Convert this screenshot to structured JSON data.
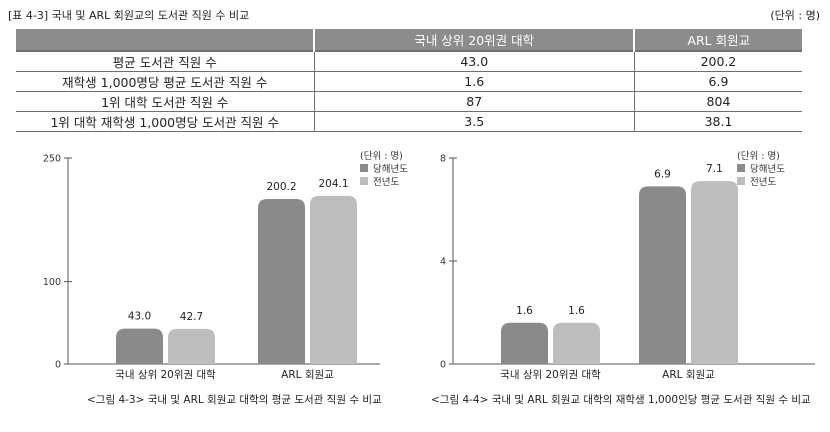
{
  "table": {
    "caption": "[표 4-3] 국내 및 ARL 회원교의 도서관 직원 수 비교",
    "unit": "(단위 : 명)",
    "headers": [
      "",
      "국내 상위 20위권 대학",
      "ARL 회원교"
    ],
    "rows": [
      [
        "평균 도서관 직원 수",
        "43.0",
        "200.2"
      ],
      [
        "재학생 1,000명당 평균 도서관 직원 수",
        "1.6",
        "6.9"
      ],
      [
        "1위 대학 도서관 직원 수",
        "87",
        "804"
      ],
      [
        "1위 대학 재학생 1,000명당 도서관 직원 수",
        "3.5",
        "38.1"
      ]
    ]
  },
  "chart_data": [
    {
      "type": "bar",
      "caption": "<그림 4-3> 국내 및 ARL 회원교 대학의 평균 도서관 직원 수 비교",
      "unit": "(단위 : 명)",
      "categories": [
        "국내 상위 20위권 대학",
        "ARL 회원교"
      ],
      "series": [
        {
          "name": "당해년도",
          "values": [
            43.0,
            200.2
          ],
          "labels": [
            "43.0",
            "200.2"
          ],
          "color": "#8a8a8a"
        },
        {
          "name": "전년도",
          "values": [
            42.7,
            204.1
          ],
          "labels": [
            "42.7",
            "204.1"
          ],
          "color": "#bdbdbd"
        }
      ],
      "ylim": [
        0,
        250
      ],
      "yticks": [
        "0",
        "100",
        "250"
      ],
      "legend_position": "top-right",
      "grid": false
    },
    {
      "type": "bar",
      "caption": "<그림 4-4> 국내 및 ARL 회원교 대학의 재학생 1,000인당 평균 도서관 직원 수 비교",
      "unit": "(단위 : 명)",
      "categories": [
        "국내 상위 20위권 대학",
        "ARL 회원교"
      ],
      "series": [
        {
          "name": "당해년도",
          "values": [
            1.6,
            6.9
          ],
          "labels": [
            "1.6",
            "6.9"
          ],
          "color": "#8a8a8a"
        },
        {
          "name": "전년도",
          "values": [
            1.6,
            7.1
          ],
          "labels": [
            "1.6",
            "7.1"
          ],
          "color": "#bdbdbd"
        }
      ],
      "ylim": [
        0,
        8
      ],
      "yticks": [
        "0",
        "4",
        "8"
      ],
      "legend_position": "top-right",
      "grid": false
    }
  ]
}
